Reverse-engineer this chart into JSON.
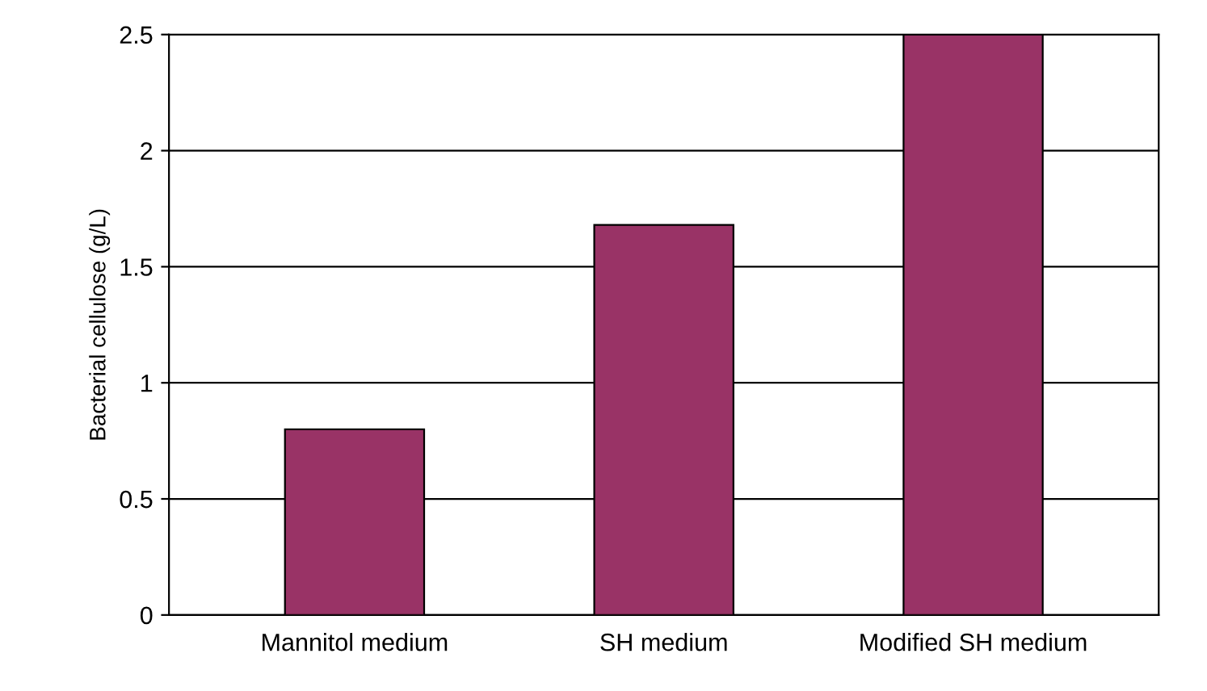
{
  "chart_data": {
    "type": "bar",
    "ylabel": "Bacterial cellulose (g/L)",
    "categories": [
      "Mannitol medium",
      "SH medium",
      "Modified SH medium"
    ],
    "values": [
      0.8,
      1.68,
      2.5
    ],
    "color": "#993366",
    "ylim": [
      0,
      2.5
    ],
    "yticks": [
      0,
      0.5,
      1,
      1.5,
      2,
      2.5
    ],
    "grid": "y"
  }
}
